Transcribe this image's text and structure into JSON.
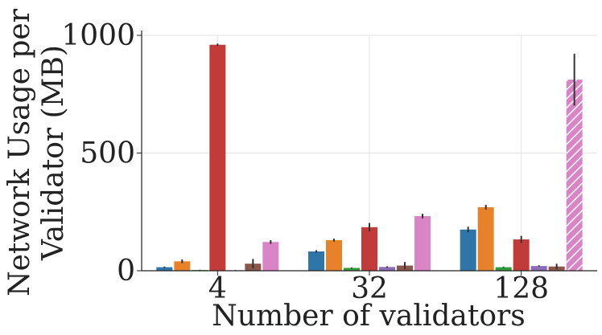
{
  "chart_data": {
    "type": "bar",
    "title": "",
    "xlabel": "Number of validators",
    "ylabel_line1": "Network Usage per",
    "ylabel_line2": "Validator (MB)",
    "categories": [
      "4",
      "32",
      "128"
    ],
    "ylim": [
      0,
      1000
    ],
    "yticks": [
      "0",
      "500",
      "1000"
    ],
    "grid": true,
    "legend": "none",
    "series": [
      {
        "color": "#2e75a8",
        "values": [
          15,
          82,
          175
        ],
        "errors": [
          3,
          5,
          12
        ]
      },
      {
        "color": "#e8822a",
        "values": [
          40,
          130,
          270
        ],
        "errors": [
          8,
          6,
          10
        ]
      },
      {
        "color": "#2f9b3a",
        "values": [
          3,
          12,
          15
        ],
        "errors": [
          1,
          2,
          2
        ]
      },
      {
        "color": "#c23b3b",
        "values": [
          960,
          185,
          133
        ],
        "errors": [
          5,
          18,
          15
        ]
      },
      {
        "color": "#8c6bb9",
        "values": [
          2,
          16,
          20
        ],
        "errors": [
          1,
          3,
          3
        ]
      },
      {
        "color": "#8c564b",
        "values": [
          30,
          22,
          18
        ],
        "errors": [
          20,
          15,
          12
        ]
      },
      {
        "color": "#d884c5",
        "values": [
          122,
          232,
          812
        ],
        "errors": [
          8,
          10,
          110
        ],
        "hatched": [
          false,
          false,
          true
        ]
      }
    ]
  }
}
